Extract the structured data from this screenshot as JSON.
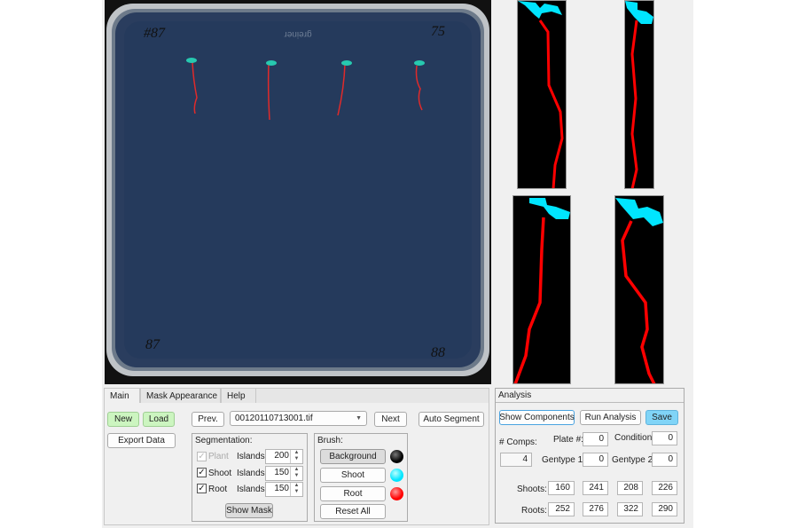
{
  "plate_image": {
    "labels": {
      "top_left": "#87",
      "top_right": "75",
      "bottom_left": "87",
      "bottom_right": "88",
      "brand": "greiner"
    },
    "colors": {
      "agar": "#253a5c",
      "shoot": "#27c9b0",
      "root": "#e02a2a"
    }
  },
  "thumbnails": {
    "count": 4,
    "colors": {
      "background": "#000000",
      "shoot": "#00e5ff",
      "root": "#ff0000"
    }
  },
  "tabs": [
    {
      "label": "Main",
      "active": true
    },
    {
      "label": "Mask Appearance"
    },
    {
      "label": "Help"
    }
  ],
  "main": {
    "new_label": "New",
    "load_label": "Load",
    "export_label": "Export Data",
    "prev_label": "Prev.",
    "file_select": "00120110713001.tif",
    "next_label": "Next",
    "auto_segment_label": "Auto Segment",
    "segmentation": {
      "title": "Segmentation:",
      "islands_label": "Islands:",
      "rows": [
        {
          "label": "Plant",
          "checked": true,
          "disabled": true,
          "islands": "200"
        },
        {
          "label": "Shoot",
          "checked": true,
          "islands": "150"
        },
        {
          "label": "Root",
          "checked": true,
          "islands": "150"
        }
      ],
      "show_mask_label": "Show Mask"
    },
    "brush": {
      "title": "Brush:",
      "buttons": [
        {
          "label": "Background",
          "color": "#000000",
          "selected": true
        },
        {
          "label": "Shoot",
          "color": "#00e5ff"
        },
        {
          "label": "Root",
          "color": "#ff0000"
        }
      ],
      "reset_label": "Reset All"
    }
  },
  "analysis": {
    "title": "Analysis",
    "show_components_label": "Show Components",
    "run_analysis_label": "Run Analysis",
    "save_label": "Save",
    "comps_label": "# Comps:",
    "comps_value": "4",
    "plate_label": "Plate #:",
    "plate_value": "0",
    "condition_label": "Condition:",
    "condition_value": "0",
    "gentype1_label": "Gentype 1:",
    "gentype1_value": "0",
    "gentype2_label": "Gentype 2:",
    "gentype2_value": "0",
    "shoots_label": "Shoots:",
    "shoots": [
      "160",
      "241",
      "208",
      "226"
    ],
    "roots_label": "Roots:",
    "roots": [
      "252",
      "276",
      "322",
      "290"
    ]
  }
}
